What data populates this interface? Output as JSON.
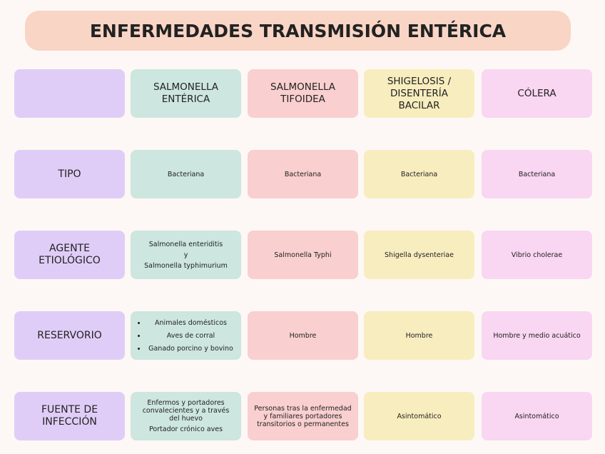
{
  "title": "ENFERMEDADES TRANSMISIÓN ENTÉRICA",
  "columns": [
    "SALMONELLA ENTÉRICA",
    "SALMONELLA TIFOIDEA",
    "SHIGELOSIS / DISENTERÍA BACILAR",
    "CÓLERA"
  ],
  "rows": [
    {
      "label": "TIPO",
      "cells": [
        {
          "lines": [
            "Bacteriana"
          ]
        },
        {
          "lines": [
            "Bacteriana"
          ]
        },
        {
          "lines": [
            "Bacteriana"
          ]
        },
        {
          "lines": [
            "Bacteriana"
          ]
        }
      ]
    },
    {
      "label": "AGENTE ETIOLÓGICO",
      "cells": [
        {
          "lines": [
            "Salmonella enteriditis",
            "y",
            "Salmonella typhimurium"
          ]
        },
        {
          "lines": [
            "Salmonella Typhi"
          ]
        },
        {
          "lines": [
            "Shigella dysenteriae"
          ]
        },
        {
          "lines": [
            "Vibrio cholerae"
          ]
        }
      ]
    },
    {
      "label": "RESERVORIO",
      "cells": [
        {
          "bullets": [
            "Animales domésticos",
            "Aves de corral",
            "Ganado porcino y bovino"
          ]
        },
        {
          "lines": [
            "Hombre"
          ]
        },
        {
          "lines": [
            "Hombre"
          ]
        },
        {
          "lines": [
            "Hombre y medio acuático"
          ]
        }
      ]
    },
    {
      "label": "FUENTE DE INFECCIÓN",
      "cells": [
        {
          "lines": [
            "Enfermos y portadores convalecientes y a través del huevo",
            "Portador crónico aves"
          ]
        },
        {
          "lines": [
            "Personas tras la enfermedad y familiares portadores transitorios o permanentes"
          ]
        },
        {
          "lines": [
            "Asintomático"
          ]
        },
        {
          "lines": [
            "Asintomático"
          ]
        }
      ]
    }
  ]
}
